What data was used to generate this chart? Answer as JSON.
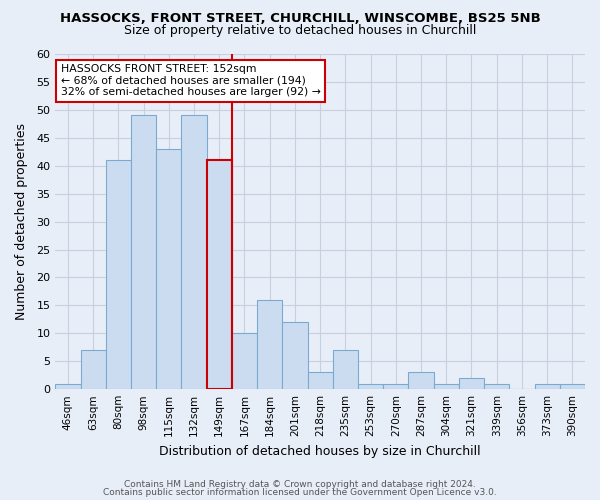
{
  "title_line1": "HASSOCKS, FRONT STREET, CHURCHILL, WINSCOMBE, BS25 5NB",
  "title_line2": "Size of property relative to detached houses in Churchill",
  "xlabel": "Distribution of detached houses by size in Churchill",
  "ylabel": "Number of detached properties",
  "categories": [
    "46sqm",
    "63sqm",
    "80sqm",
    "98sqm",
    "115sqm",
    "132sqm",
    "149sqm",
    "167sqm",
    "184sqm",
    "201sqm",
    "218sqm",
    "235sqm",
    "253sqm",
    "270sqm",
    "287sqm",
    "304sqm",
    "321sqm",
    "339sqm",
    "356sqm",
    "373sqm",
    "390sqm"
  ],
  "values": [
    1,
    7,
    41,
    49,
    43,
    49,
    41,
    10,
    16,
    12,
    3,
    7,
    1,
    1,
    3,
    1,
    2,
    1,
    0,
    1,
    1
  ],
  "bar_color": "#ccdcf0",
  "bar_edge_color": "#7aaad0",
  "highlight_index": 6,
  "highlight_edge_color": "#cc0000",
  "vline_color": "#cc0000",
  "ylim": [
    0,
    60
  ],
  "yticks": [
    0,
    5,
    10,
    15,
    20,
    25,
    30,
    35,
    40,
    45,
    50,
    55,
    60
  ],
  "annotation_title": "HASSOCKS FRONT STREET: 152sqm",
  "annotation_line1": "← 68% of detached houses are smaller (194)",
  "annotation_line2": "32% of semi-detached houses are larger (92) →",
  "annotation_box_color": "#ffffff",
  "annotation_box_edge": "#cc0000",
  "footer_line1": "Contains HM Land Registry data © Crown copyright and database right 2024.",
  "footer_line2": "Contains public sector information licensed under the Government Open Licence v3.0.",
  "background_color": "#e8eef8",
  "plot_bg_color": "#e8eef8",
  "grid_color": "#c8cfe0"
}
